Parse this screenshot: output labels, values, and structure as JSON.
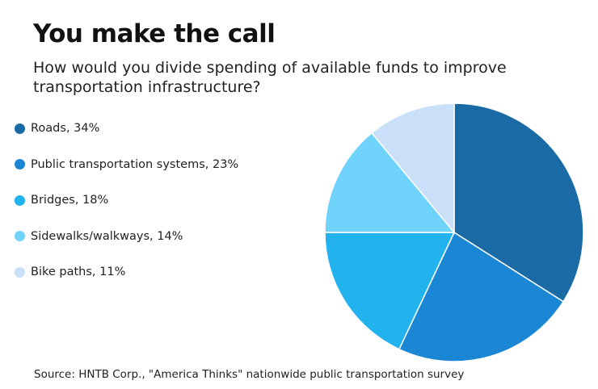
{
  "chart_data": {
    "type": "pie",
    "title": "You make the call",
    "subtitle": "How would you divide spending of available funds to improve transportation infrastructure?",
    "legend_position": "left",
    "slices": [
      {
        "label": "Roads",
        "value": 34,
        "legend_text": "Roads, 34%",
        "color": "#1a6aa6"
      },
      {
        "label": "Public transportation systems",
        "value": 23,
        "legend_text": "Public transportation systems, 23%",
        "color": "#1b86d4"
      },
      {
        "label": "Bridges",
        "value": 18,
        "legend_text": "Bridges, 18%",
        "color": "#22b3ee"
      },
      {
        "label": "Sidewalks/walkways",
        "value": 14,
        "legend_text": "Sidewalks/walkways, 14%",
        "color": "#6fd3fb"
      },
      {
        "label": "Bike paths",
        "value": 11,
        "legend_text": "Bike paths, 11%",
        "color": "#c9e0f8"
      }
    ]
  },
  "source": "Source: HNTB Corp., \"America Thinks\" nationwide public transportation survey"
}
